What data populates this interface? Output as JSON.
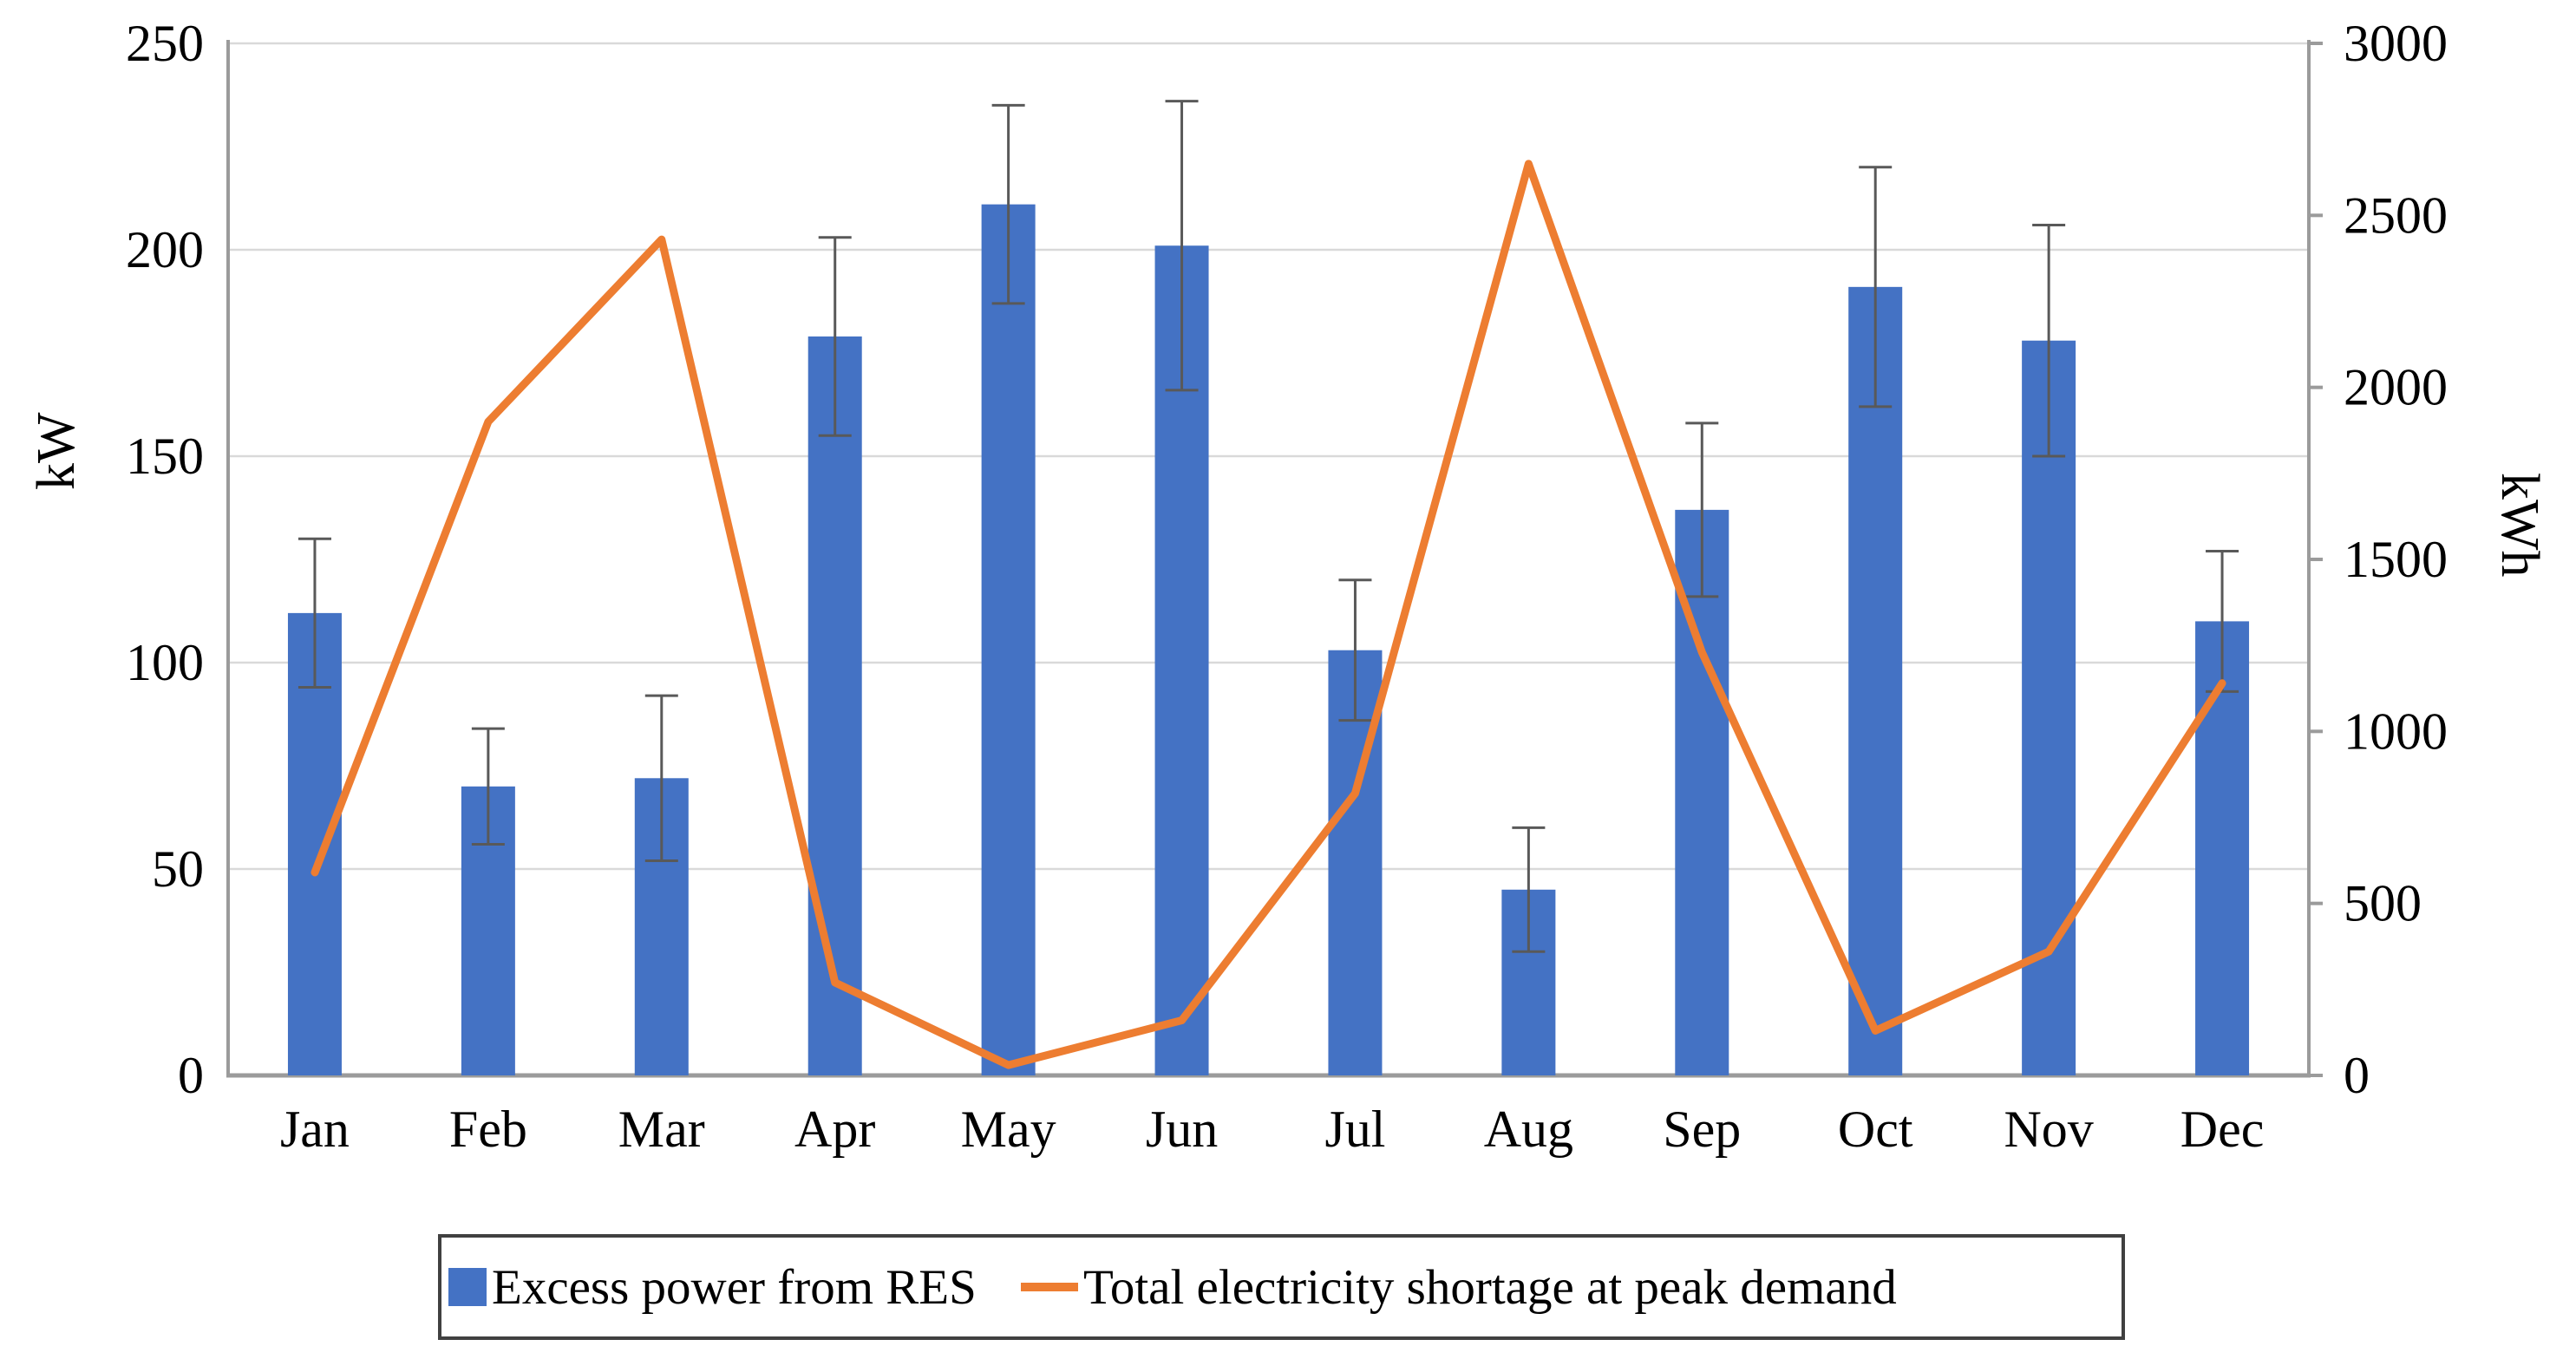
{
  "chart_data": {
    "type": "combo",
    "categories": [
      "Jan",
      "Feb",
      "Mar",
      "Apr",
      "May",
      "Jun",
      "Jul",
      "Aug",
      "Sep",
      "Oct",
      "Nov",
      "Dec"
    ],
    "series": [
      {
        "name": "Excess power from RES",
        "type": "bar",
        "axis": "left",
        "unit": "kW",
        "color": "#4472C4",
        "values": [
          112,
          70,
          72,
          179,
          211,
          201,
          103,
          45,
          137,
          191,
          178,
          110
        ],
        "error_bars": [
          18,
          14,
          20,
          24,
          24,
          35,
          17,
          15,
          21,
          29,
          28,
          17
        ]
      },
      {
        "name": "Total electricity shortage at peak demand",
        "type": "line",
        "axis": "right",
        "unit": "kWh",
        "color": "#ED7D31",
        "values": [
          590,
          1900,
          2430,
          270,
          30,
          160,
          820,
          2650,
          1230,
          130,
          360,
          1140
        ]
      }
    ],
    "axes": {
      "left": {
        "label": "kW",
        "min": 0,
        "max": 250,
        "ticks": [
          0,
          50,
          100,
          150,
          200,
          250
        ]
      },
      "right": {
        "label": "kWh",
        "min": 0,
        "max": 3000,
        "ticks": [
          0,
          500,
          1000,
          1500,
          2000,
          2500,
          3000
        ]
      }
    },
    "grid": "horizontal",
    "legend_position": "bottom"
  },
  "style": {
    "bar_color": "#4472C4",
    "line_color": "#ED7D31",
    "error_bar_color": "#595959",
    "gridline_color": "#d9d9d9",
    "axis_line_color": "#9b9b9b",
    "text_color": "#000000"
  }
}
